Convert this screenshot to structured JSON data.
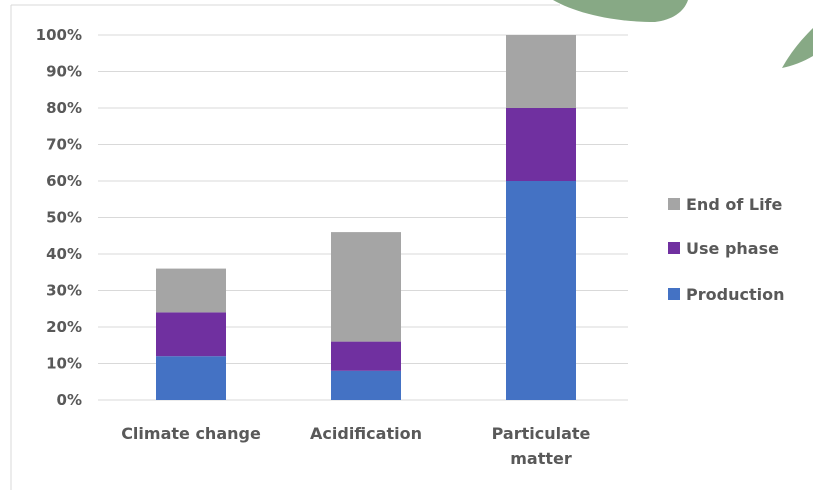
{
  "chart_data": {
    "type": "bar",
    "stacked": true,
    "categories": [
      "Climate change",
      "Acidification",
      "Particulate matter"
    ],
    "series": [
      {
        "name": "Production",
        "color": "#4472C4",
        "values": [
          12,
          8,
          60
        ]
      },
      {
        "name": "Use phase",
        "color": "#7030A0",
        "values": [
          12,
          8,
          20
        ]
      },
      {
        "name": "End of Life",
        "color": "#A5A5A5",
        "values": [
          12,
          30,
          20
        ]
      }
    ],
    "yticks": [
      "0%",
      "10%",
      "20%",
      "30%",
      "40%",
      "50%",
      "60%",
      "70%",
      "80%",
      "90%",
      "100%"
    ],
    "ylim": [
      0,
      100
    ],
    "grid": true,
    "legend_position": "right",
    "title": "",
    "xlabel": "",
    "ylabel": ""
  }
}
